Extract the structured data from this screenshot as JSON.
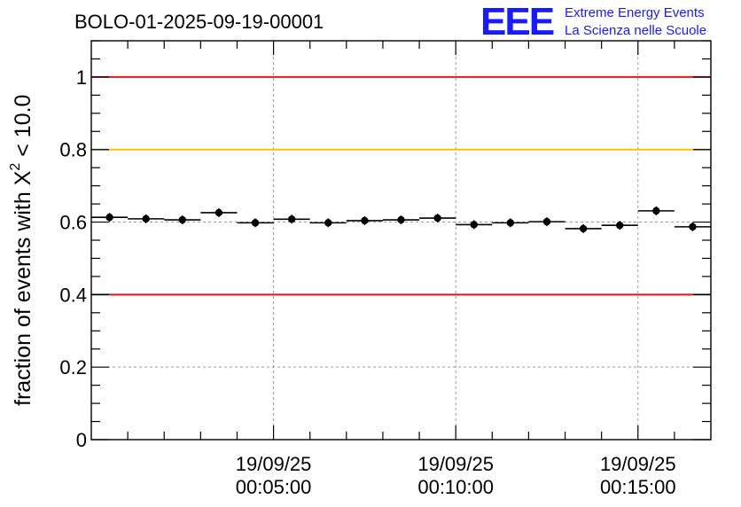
{
  "title": "BOLO-01-2025-09-19-00001",
  "logo": {
    "mark": "EEE",
    "line1": "Extreme Energy Events",
    "line2": "La Scienza nelle Scuole"
  },
  "chart_data": {
    "type": "scatter",
    "title": "BOLO-01-2025-09-19-00001",
    "xlabel": "",
    "ylabel_main": "fraction of events with X",
    "ylabel_sup": "2",
    "ylabel_tail": " < 10.0",
    "x_unit": "minutes",
    "xlim": [
      0,
      17
    ],
    "ylim": [
      0,
      1.1
    ],
    "x_ticks": [
      {
        "x": 5,
        "date": "19/09/25",
        "time": "00:05:00"
      },
      {
        "x": 10,
        "date": "19/09/25",
        "time": "00:10:00"
      },
      {
        "x": 15,
        "date": "19/09/25",
        "time": "00:15:00"
      }
    ],
    "y_ticks": [
      {
        "v": 0,
        "label": "0"
      },
      {
        "v": 0.2,
        "label": "0.2"
      },
      {
        "v": 0.4,
        "label": "0.4"
      },
      {
        "v": 0.6,
        "label": "0.6"
      },
      {
        "v": 0.8,
        "label": "0.8"
      },
      {
        "v": 1,
        "label": "1"
      }
    ],
    "grid": true,
    "reference_lines": [
      {
        "y": 1.0,
        "color": "#e8161c"
      },
      {
        "y": 0.8,
        "color": "#ffc000"
      },
      {
        "y": 0.4,
        "color": "#e8161c"
      }
    ],
    "bin_width": 1,
    "points": [
      {
        "x": 0.5,
        "y": 0.613
      },
      {
        "x": 1.5,
        "y": 0.609
      },
      {
        "x": 2.5,
        "y": 0.606
      },
      {
        "x": 3.5,
        "y": 0.626
      },
      {
        "x": 4.5,
        "y": 0.598
      },
      {
        "x": 5.5,
        "y": 0.608
      },
      {
        "x": 6.5,
        "y": 0.598
      },
      {
        "x": 7.5,
        "y": 0.604
      },
      {
        "x": 8.5,
        "y": 0.606
      },
      {
        "x": 9.5,
        "y": 0.611
      },
      {
        "x": 10.5,
        "y": 0.593
      },
      {
        "x": 11.5,
        "y": 0.598
      },
      {
        "x": 12.5,
        "y": 0.601
      },
      {
        "x": 13.5,
        "y": 0.582
      },
      {
        "x": 14.5,
        "y": 0.591
      },
      {
        "x": 15.5,
        "y": 0.631
      },
      {
        "x": 16.5,
        "y": 0.587
      }
    ]
  }
}
